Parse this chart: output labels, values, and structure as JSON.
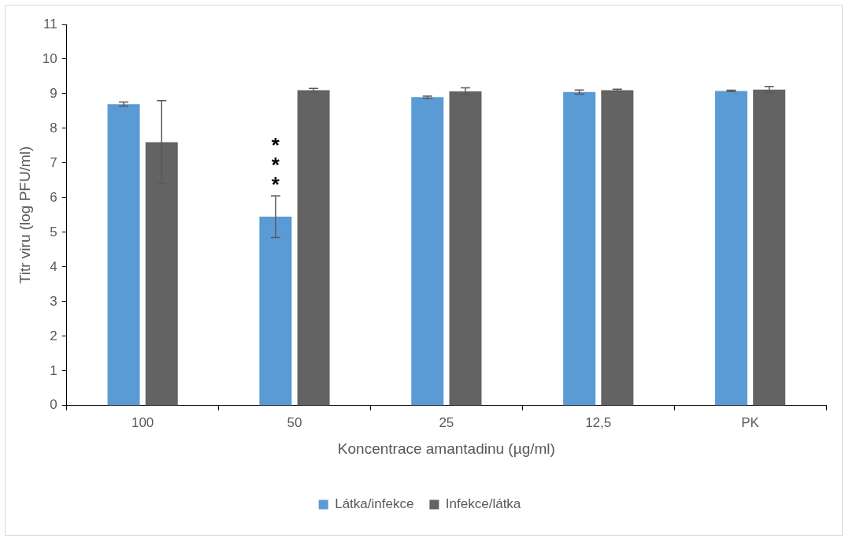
{
  "chart_data": {
    "type": "bar",
    "xlabel": "Koncentrace amantadinu (µg/ml)",
    "ylabel": "Titr viru (log PFU/ml)",
    "categories": [
      "100",
      "50",
      "25",
      "12,5",
      "PK"
    ],
    "series": [
      {
        "name": "Látka/infekce",
        "color": "#5b9bd5",
        "values": [
          8.7,
          5.45,
          8.9,
          9.05,
          9.08
        ],
        "errors": [
          0.06,
          0.6,
          0.03,
          0.06,
          0.02
        ]
      },
      {
        "name": "Infekce/látka",
        "color": "#636363",
        "values": [
          7.6,
          9.1,
          9.07,
          9.1,
          9.12
        ],
        "errors": [
          1.2,
          0.05,
          0.1,
          0.03,
          0.09
        ]
      }
    ],
    "ylim": [
      0,
      11
    ],
    "yticks": [
      0,
      1,
      2,
      3,
      4,
      5,
      6,
      7,
      8,
      9,
      10,
      11
    ],
    "grid": false,
    "legend": "bottom",
    "annotations": [
      {
        "text": "***",
        "x": "50",
        "y": 7.1
      }
    ]
  }
}
